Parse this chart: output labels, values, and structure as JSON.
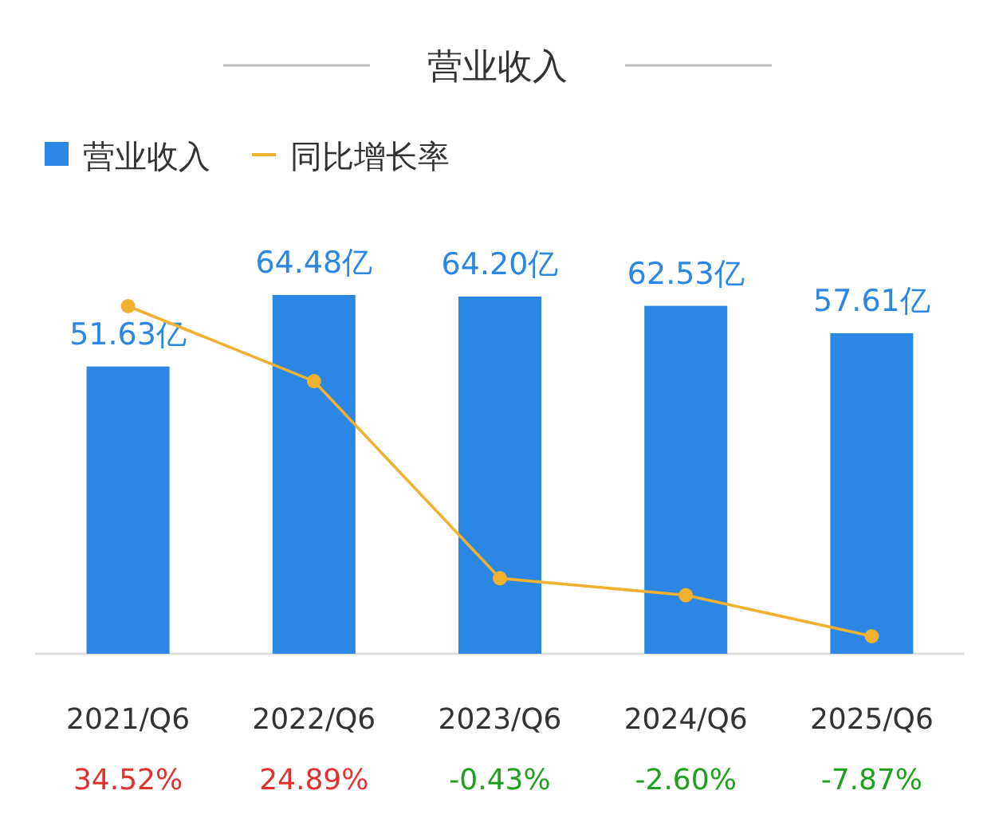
{
  "chart_data": {
    "type": "bar",
    "title": "营业收入",
    "categories": [
      "2021/Q6",
      "2022/Q6",
      "2023/Q6",
      "2024/Q6",
      "2025/Q6"
    ],
    "series": [
      {
        "name": "营业收入",
        "type": "bar",
        "color": "#2b87e3",
        "values": [
          51.63,
          64.48,
          64.2,
          62.53,
          57.61
        ],
        "value_labels": [
          "51.63亿",
          "64.48亿",
          "64.20亿",
          "62.53亿",
          "57.61亿"
        ]
      },
      {
        "name": "同比增长率",
        "type": "line",
        "axis": "y2",
        "color": "#f0b030",
        "marker": "circle",
        "values": [
          34.52,
          24.89,
          -0.43,
          -2.6,
          -7.87
        ],
        "value_labels": [
          "34.52%",
          "24.89%",
          "-0.43%",
          "-2.60%",
          "-7.87%"
        ]
      }
    ],
    "tick_labels": "x",
    "legend": "top left"
  }
}
